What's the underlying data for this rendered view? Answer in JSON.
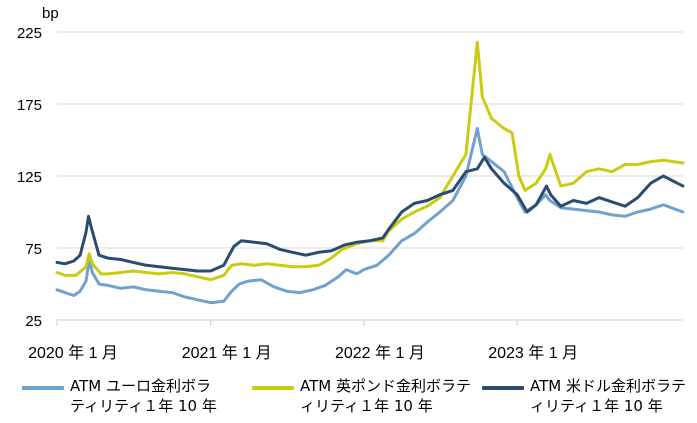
{
  "chart_data": {
    "type": "line",
    "unit_label": "bp",
    "ylim": [
      25,
      225
    ],
    "y_ticks": [
      25,
      75,
      125,
      175,
      225
    ],
    "x_range": [
      "2020-01-01",
      "2024-01-31"
    ],
    "x_ticks": [
      {
        "date": "2020-01-01",
        "label": "2020 年 1 月"
      },
      {
        "date": "2021-01-01",
        "label": "2021 年 1 月"
      },
      {
        "date": "2022-01-01",
        "label": "2022 年 1 月"
      },
      {
        "date": "2023-01-01",
        "label": "2023 年 1 月"
      }
    ],
    "grid": "horizontal",
    "legend_position": "bottom",
    "series": [
      {
        "name": "ATM ユーロ金利ボラティリティ１年 10 年",
        "color": "#6FA3CE",
        "points": [
          [
            "2020-01-01",
            46
          ],
          [
            "2020-01-20",
            44
          ],
          [
            "2020-02-10",
            42
          ],
          [
            "2020-02-25",
            45
          ],
          [
            "2020-03-10",
            52
          ],
          [
            "2020-03-18",
            67
          ],
          [
            "2020-03-25",
            58
          ],
          [
            "2020-04-10",
            50
          ],
          [
            "2020-05-01",
            49
          ],
          [
            "2020-06-01",
            47
          ],
          [
            "2020-07-01",
            48
          ],
          [
            "2020-08-01",
            46
          ],
          [
            "2020-09-01",
            45
          ],
          [
            "2020-10-01",
            44
          ],
          [
            "2020-11-01",
            41
          ],
          [
            "2020-12-01",
            39
          ],
          [
            "2021-01-01",
            37
          ],
          [
            "2021-02-01",
            38
          ],
          [
            "2021-02-20",
            45
          ],
          [
            "2021-03-10",
            50
          ],
          [
            "2021-04-01",
            52
          ],
          [
            "2021-05-01",
            53
          ],
          [
            "2021-06-01",
            48
          ],
          [
            "2021-07-01",
            45
          ],
          [
            "2021-08-01",
            44
          ],
          [
            "2021-09-01",
            46
          ],
          [
            "2021-10-01",
            49
          ],
          [
            "2021-11-01",
            55
          ],
          [
            "2021-11-20",
            60
          ],
          [
            "2021-12-15",
            57
          ],
          [
            "2022-01-01",
            60
          ],
          [
            "2022-02-01",
            63
          ],
          [
            "2022-03-01",
            70
          ],
          [
            "2022-04-01",
            80
          ],
          [
            "2022-05-01",
            85
          ],
          [
            "2022-06-01",
            93
          ],
          [
            "2022-07-01",
            100
          ],
          [
            "2022-08-01",
            108
          ],
          [
            "2022-09-01",
            125
          ],
          [
            "2022-09-28",
            158
          ],
          [
            "2022-10-10",
            140
          ],
          [
            "2022-11-01",
            135
          ],
          [
            "2022-12-01",
            128
          ],
          [
            "2023-01-01",
            110
          ],
          [
            "2023-01-20",
            100
          ],
          [
            "2023-02-15",
            105
          ],
          [
            "2023-03-10",
            112
          ],
          [
            "2023-03-20",
            108
          ],
          [
            "2023-04-15",
            103
          ],
          [
            "2023-05-15",
            102
          ],
          [
            "2023-06-15",
            101
          ],
          [
            "2023-07-15",
            100
          ],
          [
            "2023-08-15",
            98
          ],
          [
            "2023-09-15",
            97
          ],
          [
            "2023-10-15",
            100
          ],
          [
            "2023-11-15",
            102
          ],
          [
            "2023-12-15",
            105
          ],
          [
            "2024-01-31",
            100
          ]
        ]
      },
      {
        "name": "ATM 英ポンド金利ボラティリティ１年 10 年",
        "color": "#C9CC12",
        "points": [
          [
            "2020-01-01",
            58
          ],
          [
            "2020-01-20",
            56
          ],
          [
            "2020-02-15",
            56
          ],
          [
            "2020-03-10",
            62
          ],
          [
            "2020-03-18",
            71
          ],
          [
            "2020-03-25",
            64
          ],
          [
            "2020-04-15",
            57
          ],
          [
            "2020-05-01",
            57
          ],
          [
            "2020-06-01",
            58
          ],
          [
            "2020-07-01",
            59
          ],
          [
            "2020-08-01",
            58
          ],
          [
            "2020-09-01",
            57
          ],
          [
            "2020-10-01",
            58
          ],
          [
            "2020-11-01",
            57
          ],
          [
            "2020-12-01",
            55
          ],
          [
            "2021-01-01",
            53
          ],
          [
            "2021-02-01",
            56
          ],
          [
            "2021-02-20",
            63
          ],
          [
            "2021-03-15",
            64
          ],
          [
            "2021-04-15",
            63
          ],
          [
            "2021-05-15",
            64
          ],
          [
            "2021-06-15",
            63
          ],
          [
            "2021-07-15",
            62
          ],
          [
            "2021-08-15",
            62
          ],
          [
            "2021-09-15",
            63
          ],
          [
            "2021-10-15",
            68
          ],
          [
            "2021-11-10",
            74
          ],
          [
            "2021-12-15",
            78
          ],
          [
            "2022-01-15",
            80
          ],
          [
            "2022-02-15",
            80
          ],
          [
            "2022-03-01",
            87
          ],
          [
            "2022-04-01",
            95
          ],
          [
            "2022-05-01",
            100
          ],
          [
            "2022-06-01",
            104
          ],
          [
            "2022-07-01",
            110
          ],
          [
            "2022-08-01",
            125
          ],
          [
            "2022-09-01",
            140
          ],
          [
            "2022-09-28",
            218
          ],
          [
            "2022-10-10",
            180
          ],
          [
            "2022-11-01",
            165
          ],
          [
            "2022-12-01",
            158
          ],
          [
            "2022-12-20",
            155
          ],
          [
            "2023-01-05",
            125
          ],
          [
            "2023-01-20",
            115
          ],
          [
            "2023-02-15",
            120
          ],
          [
            "2023-03-10",
            130
          ],
          [
            "2023-03-20",
            140
          ],
          [
            "2023-04-15",
            118
          ],
          [
            "2023-05-15",
            120
          ],
          [
            "2023-06-15",
            128
          ],
          [
            "2023-07-15",
            130
          ],
          [
            "2023-08-15",
            128
          ],
          [
            "2023-09-15",
            133
          ],
          [
            "2023-10-15",
            133
          ],
          [
            "2023-11-15",
            135
          ],
          [
            "2023-12-15",
            136
          ],
          [
            "2024-01-31",
            134
          ]
        ]
      },
      {
        "name": "ATM 米ドル金利ボラティリティ１年 10 年",
        "color": "#2B4C6F",
        "points": [
          [
            "2020-01-01",
            65
          ],
          [
            "2020-01-20",
            64
          ],
          [
            "2020-02-10",
            66
          ],
          [
            "2020-02-25",
            70
          ],
          [
            "2020-03-10",
            86
          ],
          [
            "2020-03-16",
            97
          ],
          [
            "2020-03-22",
            90
          ],
          [
            "2020-04-10",
            70
          ],
          [
            "2020-05-01",
            68
          ],
          [
            "2020-06-01",
            67
          ],
          [
            "2020-07-01",
            65
          ],
          [
            "2020-08-01",
            63
          ],
          [
            "2020-09-01",
            62
          ],
          [
            "2020-10-01",
            61
          ],
          [
            "2020-11-01",
            60
          ],
          [
            "2020-12-01",
            59
          ],
          [
            "2021-01-01",
            59
          ],
          [
            "2021-02-01",
            63
          ],
          [
            "2021-02-25",
            76
          ],
          [
            "2021-03-15",
            80
          ],
          [
            "2021-04-15",
            79
          ],
          [
            "2021-05-15",
            78
          ],
          [
            "2021-06-15",
            74
          ],
          [
            "2021-07-15",
            72
          ],
          [
            "2021-08-15",
            70
          ],
          [
            "2021-09-15",
            72
          ],
          [
            "2021-10-15",
            73
          ],
          [
            "2021-11-15",
            77
          ],
          [
            "2021-12-15",
            79
          ],
          [
            "2022-01-15",
            80
          ],
          [
            "2022-02-15",
            82
          ],
          [
            "2022-03-01",
            88
          ],
          [
            "2022-04-01",
            100
          ],
          [
            "2022-05-01",
            106
          ],
          [
            "2022-06-01",
            108
          ],
          [
            "2022-07-01",
            112
          ],
          [
            "2022-08-01",
            115
          ],
          [
            "2022-09-01",
            128
          ],
          [
            "2022-09-28",
            130
          ],
          [
            "2022-10-15",
            138
          ],
          [
            "2022-11-01",
            130
          ],
          [
            "2022-12-01",
            120
          ],
          [
            "2023-01-01",
            112
          ],
          [
            "2023-01-25",
            100
          ],
          [
            "2023-02-15",
            105
          ],
          [
            "2023-03-12",
            118
          ],
          [
            "2023-03-22",
            112
          ],
          [
            "2023-04-15",
            104
          ],
          [
            "2023-05-15",
            108
          ],
          [
            "2023-06-15",
            106
          ],
          [
            "2023-07-15",
            110
          ],
          [
            "2023-08-15",
            107
          ],
          [
            "2023-09-15",
            104
          ],
          [
            "2023-10-15",
            110
          ],
          [
            "2023-11-15",
            120
          ],
          [
            "2023-12-15",
            125
          ],
          [
            "2024-01-31",
            118
          ]
        ]
      }
    ]
  }
}
